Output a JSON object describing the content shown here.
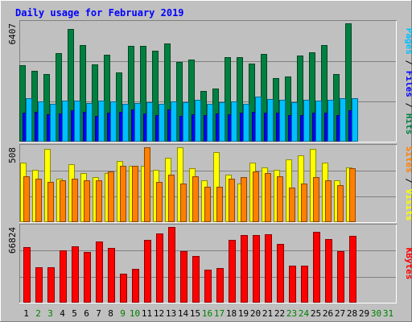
{
  "chart_data": [
    {
      "type": "bar",
      "title": "Daily usage for February 2019",
      "categories": [
        "1",
        "2",
        "3",
        "4",
        "5",
        "6",
        "7",
        "8",
        "9",
        "10",
        "11",
        "12",
        "13",
        "14",
        "15",
        "16",
        "17",
        "18",
        "19",
        "20",
        "21",
        "22",
        "23",
        "24",
        "25",
        "26",
        "27",
        "28",
        "29",
        "30",
        "31"
      ],
      "weekend_days": [
        "2",
        "3",
        "9",
        "10",
        "16",
        "17",
        "23",
        "24",
        "30",
        "31"
      ],
      "ylabel_parts": [
        "Pages",
        "Files",
        "Hits"
      ],
      "ymax_label": "6407",
      "ylim": [
        0,
        6407
      ],
      "series": [
        {
          "name": "Hits",
          "color": "#008040",
          "values": [
            4130,
            3800,
            3620,
            4780,
            6050,
            5190,
            4160,
            4660,
            3730,
            5170,
            5130,
            4910,
            5290,
            4280,
            4430,
            2740,
            2860,
            4560,
            4530,
            4190,
            4700,
            3420,
            3520,
            4650,
            4810,
            5200,
            3650,
            6370,
            null,
            null,
            null
          ]
        },
        {
          "name": "Files",
          "color": "#0000ff",
          "values": [
            1550,
            1590,
            1480,
            1500,
            1700,
            1590,
            1390,
            1550,
            1590,
            1720,
            1500,
            1450,
            1720,
            1370,
            1460,
            1420,
            1500,
            1460,
            1580,
            1590,
            1550,
            1550,
            1410,
            1450,
            1560,
            1570,
            1450,
            1680,
            null,
            null,
            null
          ]
        },
        {
          "name": "Pages",
          "color": "#00c0ff",
          "values": [
            2320,
            2170,
            2030,
            2200,
            2210,
            2060,
            2190,
            2150,
            2030,
            2080,
            2100,
            2050,
            2160,
            2140,
            2250,
            2030,
            2110,
            2180,
            2050,
            2410,
            2300,
            2240,
            2100,
            2240,
            2200,
            2230,
            2330,
            2330,
            null,
            null,
            null
          ]
        }
      ]
    },
    {
      "type": "bar",
      "ylabel_parts": [
        "Sites",
        "Visits"
      ],
      "ymax_label": "508",
      "ylim": [
        0,
        508
      ],
      "series": [
        {
          "name": "Visits",
          "color": "#ffff00",
          "values": [
            400,
            350,
            490,
            290,
            390,
            330,
            300,
            330,
            410,
            380,
            380,
            350,
            430,
            500,
            360,
            280,
            470,
            320,
            260,
            400,
            370,
            350,
            420,
            450,
            490,
            400,
            280,
            370,
            null,
            null,
            null
          ]
        },
        {
          "name": "Sites",
          "color": "#ff8000",
          "values": [
            310,
            290,
            270,
            280,
            290,
            280,
            280,
            340,
            380,
            380,
            500,
            270,
            320,
            260,
            310,
            240,
            240,
            290,
            300,
            340,
            330,
            310,
            230,
            260,
            300,
            280,
            250,
            360,
            null,
            null,
            null
          ]
        }
      ]
    },
    {
      "type": "bar",
      "ylabel": "KBytes",
      "ymax_label": "66824",
      "ylim": [
        0,
        66824
      ],
      "series": [
        {
          "name": "KBytes",
          "color": "#ff0000",
          "values": [
            48250,
            30990,
            30990,
            45940,
            49190,
            44560,
            53750,
            47860,
            25210,
            29200,
            55060,
            60650,
            66150,
            44670,
            40550,
            28500,
            30560,
            54650,
            59160,
            59090,
            60060,
            51150,
            32220,
            32220,
            61640,
            55540,
            44760,
            58530,
            null,
            null,
            null
          ]
        }
      ]
    }
  ],
  "colors": {
    "background": "#c0c0c0",
    "title": "#0000ff",
    "weekend_label": "#008000",
    "weekday_label": "#000000",
    "gridline": "#808080",
    "divider": "#808080"
  }
}
